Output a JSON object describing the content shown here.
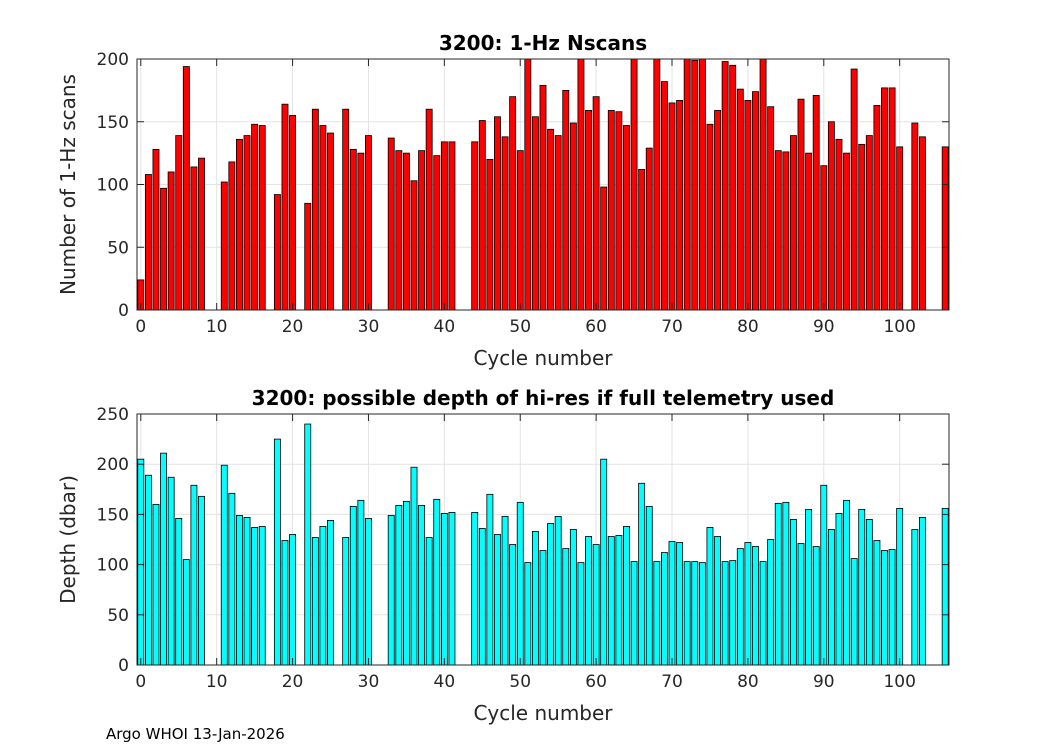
{
  "chart_data": [
    {
      "type": "bar",
      "title": "3200: 1-Hz Nscans",
      "xlabel": "Cycle number",
      "ylabel": "Number of 1-Hz scans",
      "xlim": [
        -0.5,
        106.5
      ],
      "ylim": [
        0,
        200
      ],
      "xticks": [
        0,
        10,
        20,
        30,
        40,
        50,
        60,
        70,
        80,
        90,
        100
      ],
      "yticks": [
        0,
        50,
        100,
        150,
        200
      ],
      "grid": true,
      "color": "#ff0000",
      "x": [
        0,
        1,
        2,
        3,
        4,
        5,
        6,
        7,
        8,
        11,
        12,
        13,
        14,
        15,
        16,
        18,
        19,
        20,
        22,
        23,
        24,
        25,
        27,
        28,
        29,
        30,
        33,
        34,
        35,
        36,
        37,
        38,
        39,
        40,
        41,
        44,
        45,
        46,
        47,
        48,
        49,
        50,
        51,
        52,
        53,
        54,
        55,
        56,
        57,
        58,
        59,
        60,
        61,
        62,
        63,
        64,
        65,
        66,
        67,
        68,
        69,
        70,
        71,
        72,
        73,
        74,
        75,
        76,
        77,
        78,
        79,
        80,
        81,
        82,
        83,
        84,
        85,
        86,
        87,
        88,
        89,
        90,
        91,
        92,
        93,
        94,
        95,
        96,
        97,
        98,
        99,
        100,
        102,
        103,
        106
      ],
      "values": [
        24,
        108,
        128,
        97,
        110,
        139,
        194,
        114,
        121,
        102,
        118,
        136,
        139,
        148,
        147,
        92,
        164,
        155,
        85,
        160,
        147,
        141,
        160,
        128,
        125,
        139,
        137,
        127,
        125,
        103,
        127,
        160,
        123,
        134,
        134,
        134,
        151,
        120,
        154,
        138,
        170,
        127,
        200,
        154,
        179,
        144,
        139,
        175,
        149,
        200,
        159,
        170,
        98,
        159,
        158,
        147,
        200,
        112,
        129,
        200,
        182,
        165,
        167,
        200,
        199,
        200,
        148,
        159,
        198,
        195,
        176,
        167,
        174,
        200,
        162,
        127,
        126,
        139,
        168,
        125,
        171,
        115,
        150,
        136,
        125,
        192,
        132,
        139,
        163,
        177,
        177,
        130,
        149,
        138,
        130
      ]
    },
    {
      "type": "bar",
      "title": "3200: possible depth of hi-res if full telemetry used",
      "xlabel": "Cycle number",
      "ylabel": "Depth (dbar)",
      "xlim": [
        -0.5,
        106.5
      ],
      "ylim": [
        0,
        250
      ],
      "xticks": [
        0,
        10,
        20,
        30,
        40,
        50,
        60,
        70,
        80,
        90,
        100
      ],
      "yticks": [
        0,
        50,
        100,
        150,
        200,
        250
      ],
      "grid": true,
      "color": "#00ffff",
      "x": [
        0,
        1,
        2,
        3,
        4,
        5,
        6,
        7,
        8,
        11,
        12,
        13,
        14,
        15,
        16,
        18,
        19,
        20,
        22,
        23,
        24,
        25,
        27,
        28,
        29,
        30,
        33,
        34,
        35,
        36,
        37,
        38,
        39,
        40,
        41,
        44,
        45,
        46,
        47,
        48,
        49,
        50,
        51,
        52,
        53,
        54,
        55,
        56,
        57,
        58,
        59,
        60,
        61,
        62,
        63,
        64,
        65,
        66,
        67,
        68,
        69,
        70,
        71,
        72,
        73,
        74,
        75,
        76,
        77,
        78,
        79,
        80,
        81,
        82,
        83,
        84,
        85,
        86,
        87,
        88,
        89,
        90,
        91,
        92,
        93,
        94,
        95,
        96,
        97,
        98,
        99,
        100,
        102,
        103,
        106
      ],
      "values": [
        205,
        189,
        160,
        211,
        187,
        146,
        105,
        179,
        168,
        199,
        171,
        149,
        147,
        137,
        138,
        225,
        124,
        130,
        240,
        127,
        138,
        144,
        127,
        158,
        164,
        146,
        149,
        159,
        163,
        197,
        159,
        127,
        165,
        151,
        152,
        152,
        136,
        170,
        130,
        148,
        120,
        162,
        102,
        133,
        114,
        141,
        148,
        116,
        135,
        102,
        128,
        120,
        205,
        128,
        129,
        138,
        103,
        181,
        158,
        103,
        112,
        123,
        122,
        103,
        103,
        102,
        137,
        128,
        103,
        104,
        116,
        122,
        118,
        103,
        125,
        161,
        162,
        145,
        121,
        155,
        118,
        179,
        135,
        151,
        164,
        106,
        155,
        145,
        124,
        114,
        115,
        156,
        135,
        147,
        156
      ]
    }
  ],
  "footer": "Argo WHOI 13-Jan-2026"
}
